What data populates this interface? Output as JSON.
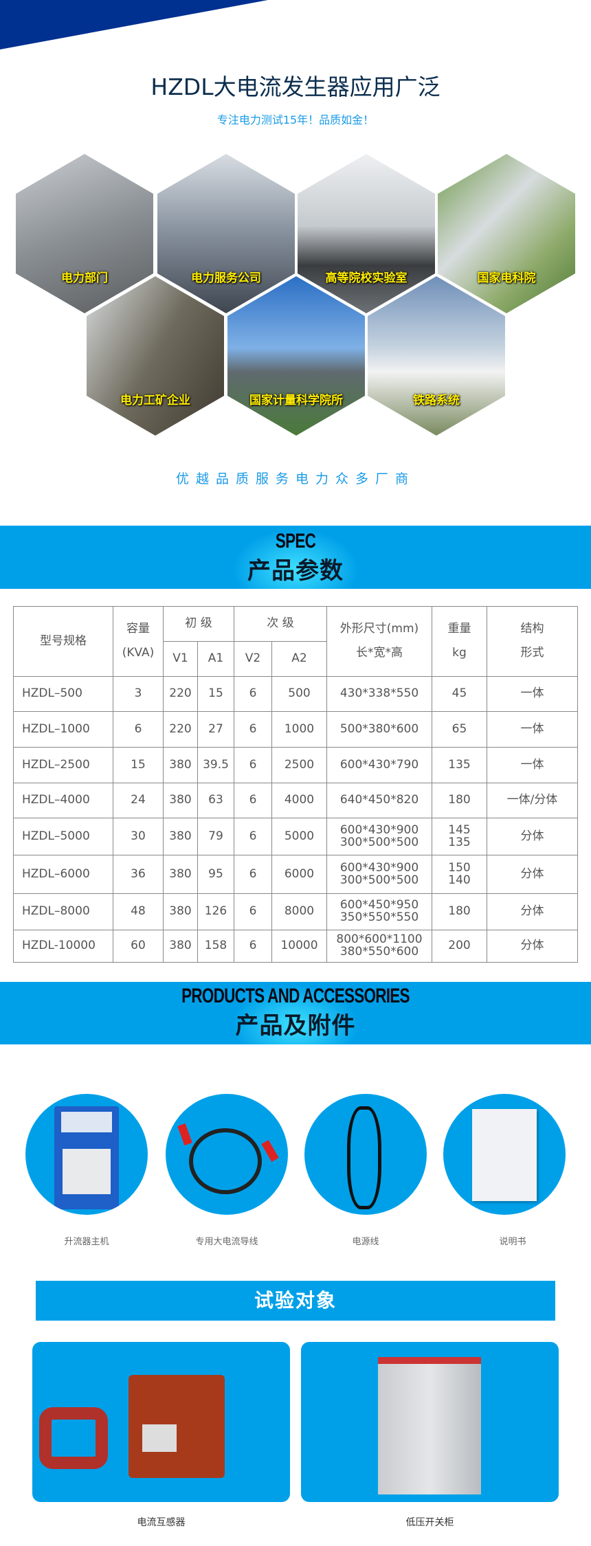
{
  "header": {
    "title": "HZDL大电流发生器应用广泛",
    "subtitle": "专注电力测试15年！品质如金！",
    "brand_color": "#003090",
    "accent_color": "#00a0e9"
  },
  "applications": [
    {
      "label": "电力部门"
    },
    {
      "label": "电力服务公司"
    },
    {
      "label": "高等院校实验室"
    },
    {
      "label": "国家电科院"
    },
    {
      "label": "电力工矿企业"
    },
    {
      "label": "国家计量科学院所"
    },
    {
      "label": "铁路系统"
    }
  ],
  "tagline": "优越品质服务电力众多厂商",
  "spec_banner": {
    "en": "SPEC",
    "zh": "产品参数"
  },
  "spec_table": {
    "headers": {
      "model": "型号规格",
      "capacity": "容量",
      "capacity_unit": "(KVA)",
      "primary": "初 级",
      "secondary": "次 级",
      "v1": "V1",
      "a1": "A1",
      "v2": "V2",
      "a2": "A2",
      "dims": "外形尺寸(mm)",
      "dims_sub": "长*宽*高",
      "weight": "重量",
      "weight_unit": "kg",
      "structure": "结构",
      "structure_sub": "形式"
    },
    "rows": [
      [
        "HZDL–500",
        "3",
        "220",
        "15",
        "6",
        "500",
        "430*338*550",
        "45",
        "一体"
      ],
      [
        "HZDL–1000",
        "6",
        "220",
        "27",
        "6",
        "1000",
        "500*380*600",
        "65",
        "一体"
      ],
      [
        "HZDL–2500",
        "15",
        "380",
        "39.5",
        "6",
        "2500",
        "600*430*790",
        "135",
        "一体"
      ],
      [
        "HZDL–4000",
        "24",
        "380",
        "63",
        "6",
        "4000",
        "640*450*820",
        "180",
        "一体/分体"
      ],
      [
        "HZDL–5000",
        "30",
        "380",
        "79",
        "6",
        "5000",
        "600*430*900\n300*500*500",
        "145\n135",
        "分体"
      ],
      [
        "HZDL–6000",
        "36",
        "380",
        "95",
        "6",
        "6000",
        "600*430*900\n300*500*500",
        "150\n140",
        "分体"
      ],
      [
        "HZDL–8000",
        "48",
        "380",
        "126",
        "6",
        "8000",
        "600*450*950\n350*550*550",
        "180",
        "分体"
      ],
      [
        "HZDL-10000",
        "60",
        "380",
        "158",
        "6",
        "10000",
        "800*600*1100\n380*550*600",
        "200",
        "分体"
      ]
    ]
  },
  "products_banner": {
    "en": "PRODUCTS AND ACCESSORIES",
    "zh": "产品及附件"
  },
  "products": [
    {
      "label": "升流器主机"
    },
    {
      "label": "专用大电流导线"
    },
    {
      "label": "电源线"
    },
    {
      "label": "说明书"
    }
  ],
  "test_banner": "试验对象",
  "test_objects": [
    {
      "label": "电流互感器"
    },
    {
      "label": "低压开关柜"
    }
  ]
}
